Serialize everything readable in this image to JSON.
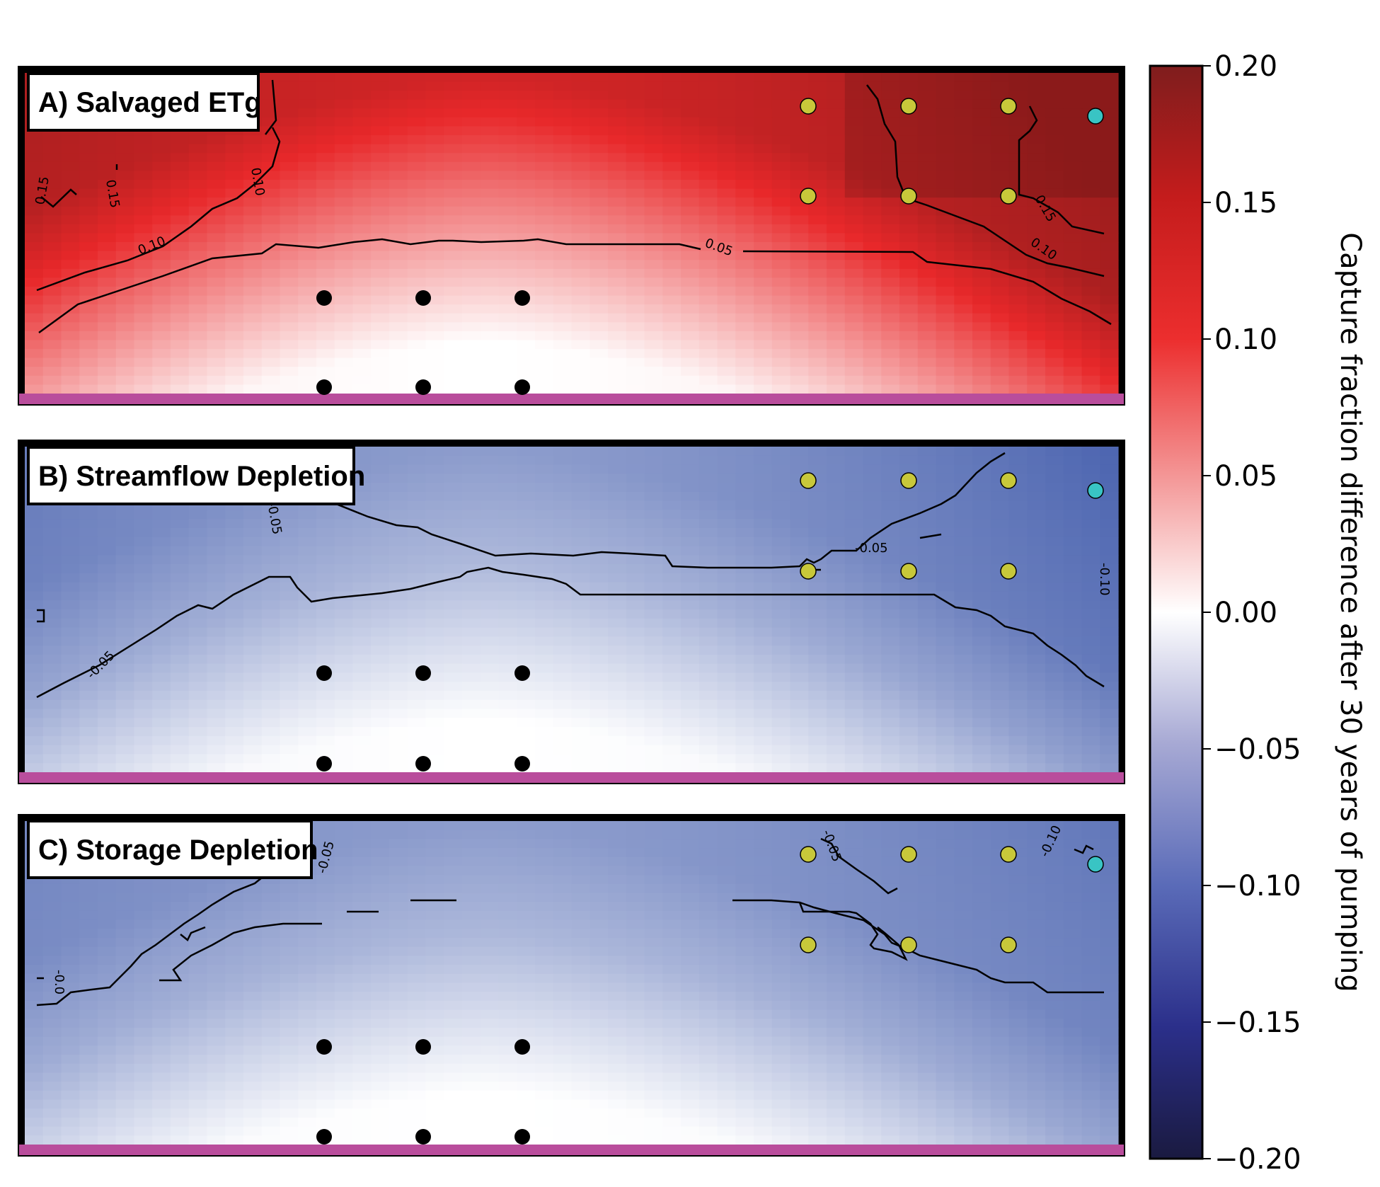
{
  "chart_data": {
    "type": "heatmap",
    "colorbar": {
      "label": "Capture fraction difference after 30 years of pumping",
      "ticks": [
        "0.20",
        "0.15",
        "0.10",
        "0.05",
        "0.00",
        "−0.05",
        "−0.10",
        "−0.15",
        "−0.20"
      ],
      "tick_values": [
        0.2,
        0.15,
        0.1,
        0.05,
        0.0,
        -0.05,
        -0.1,
        -0.15,
        -0.2
      ],
      "range": [
        -0.2,
        0.2
      ],
      "colormap": "seismic_r (red positive, white zero, blue negative)"
    },
    "colors": {
      "red_max": "#8b1a1a",
      "red": "#e8282a",
      "white": "#ffffff",
      "blue": "#3a55a8",
      "blue_max": "#1c1a4a",
      "yellow_well": "#c8c83a",
      "cyan_well": "#39c4c4",
      "black_well": "#000000",
      "stream_bar": "#b94d9c"
    },
    "panels": [
      {
        "title": "A) Salvaged ETg",
        "contour_labels": [
          "0.15",
          "0.15",
          "0.15",
          "0.10",
          "0.10",
          "0.05",
          "0.15",
          "0.10"
        ],
        "field": {
          "top": 0.14,
          "mid": 0.08,
          "bottom": 0.0,
          "sign": 1,
          "edge_boost": 0.04
        }
      },
      {
        "title": "B) Streamflow Depletion",
        "contour_labels": [
          "-0.05",
          "-0.05",
          "-0.05",
          "-0.10"
        ],
        "field": {
          "top": -0.07,
          "mid": -0.05,
          "bottom": 0.0,
          "sign": -1,
          "edge_boost": 0.03
        }
      },
      {
        "title": "C) Storage Depletion",
        "contour_labels": [
          "-0.05",
          "-0.05",
          "-0.10",
          "-0.0"
        ],
        "field": {
          "top": -0.07,
          "mid": -0.05,
          "bottom": 0.0,
          "sign": -1,
          "edge_boost": 0.02
        }
      }
    ],
    "wells": {
      "yellow_rows": 2,
      "yellow_cols": 3,
      "black_rows": 2,
      "black_cols": 3,
      "cyan_count": 1
    }
  }
}
